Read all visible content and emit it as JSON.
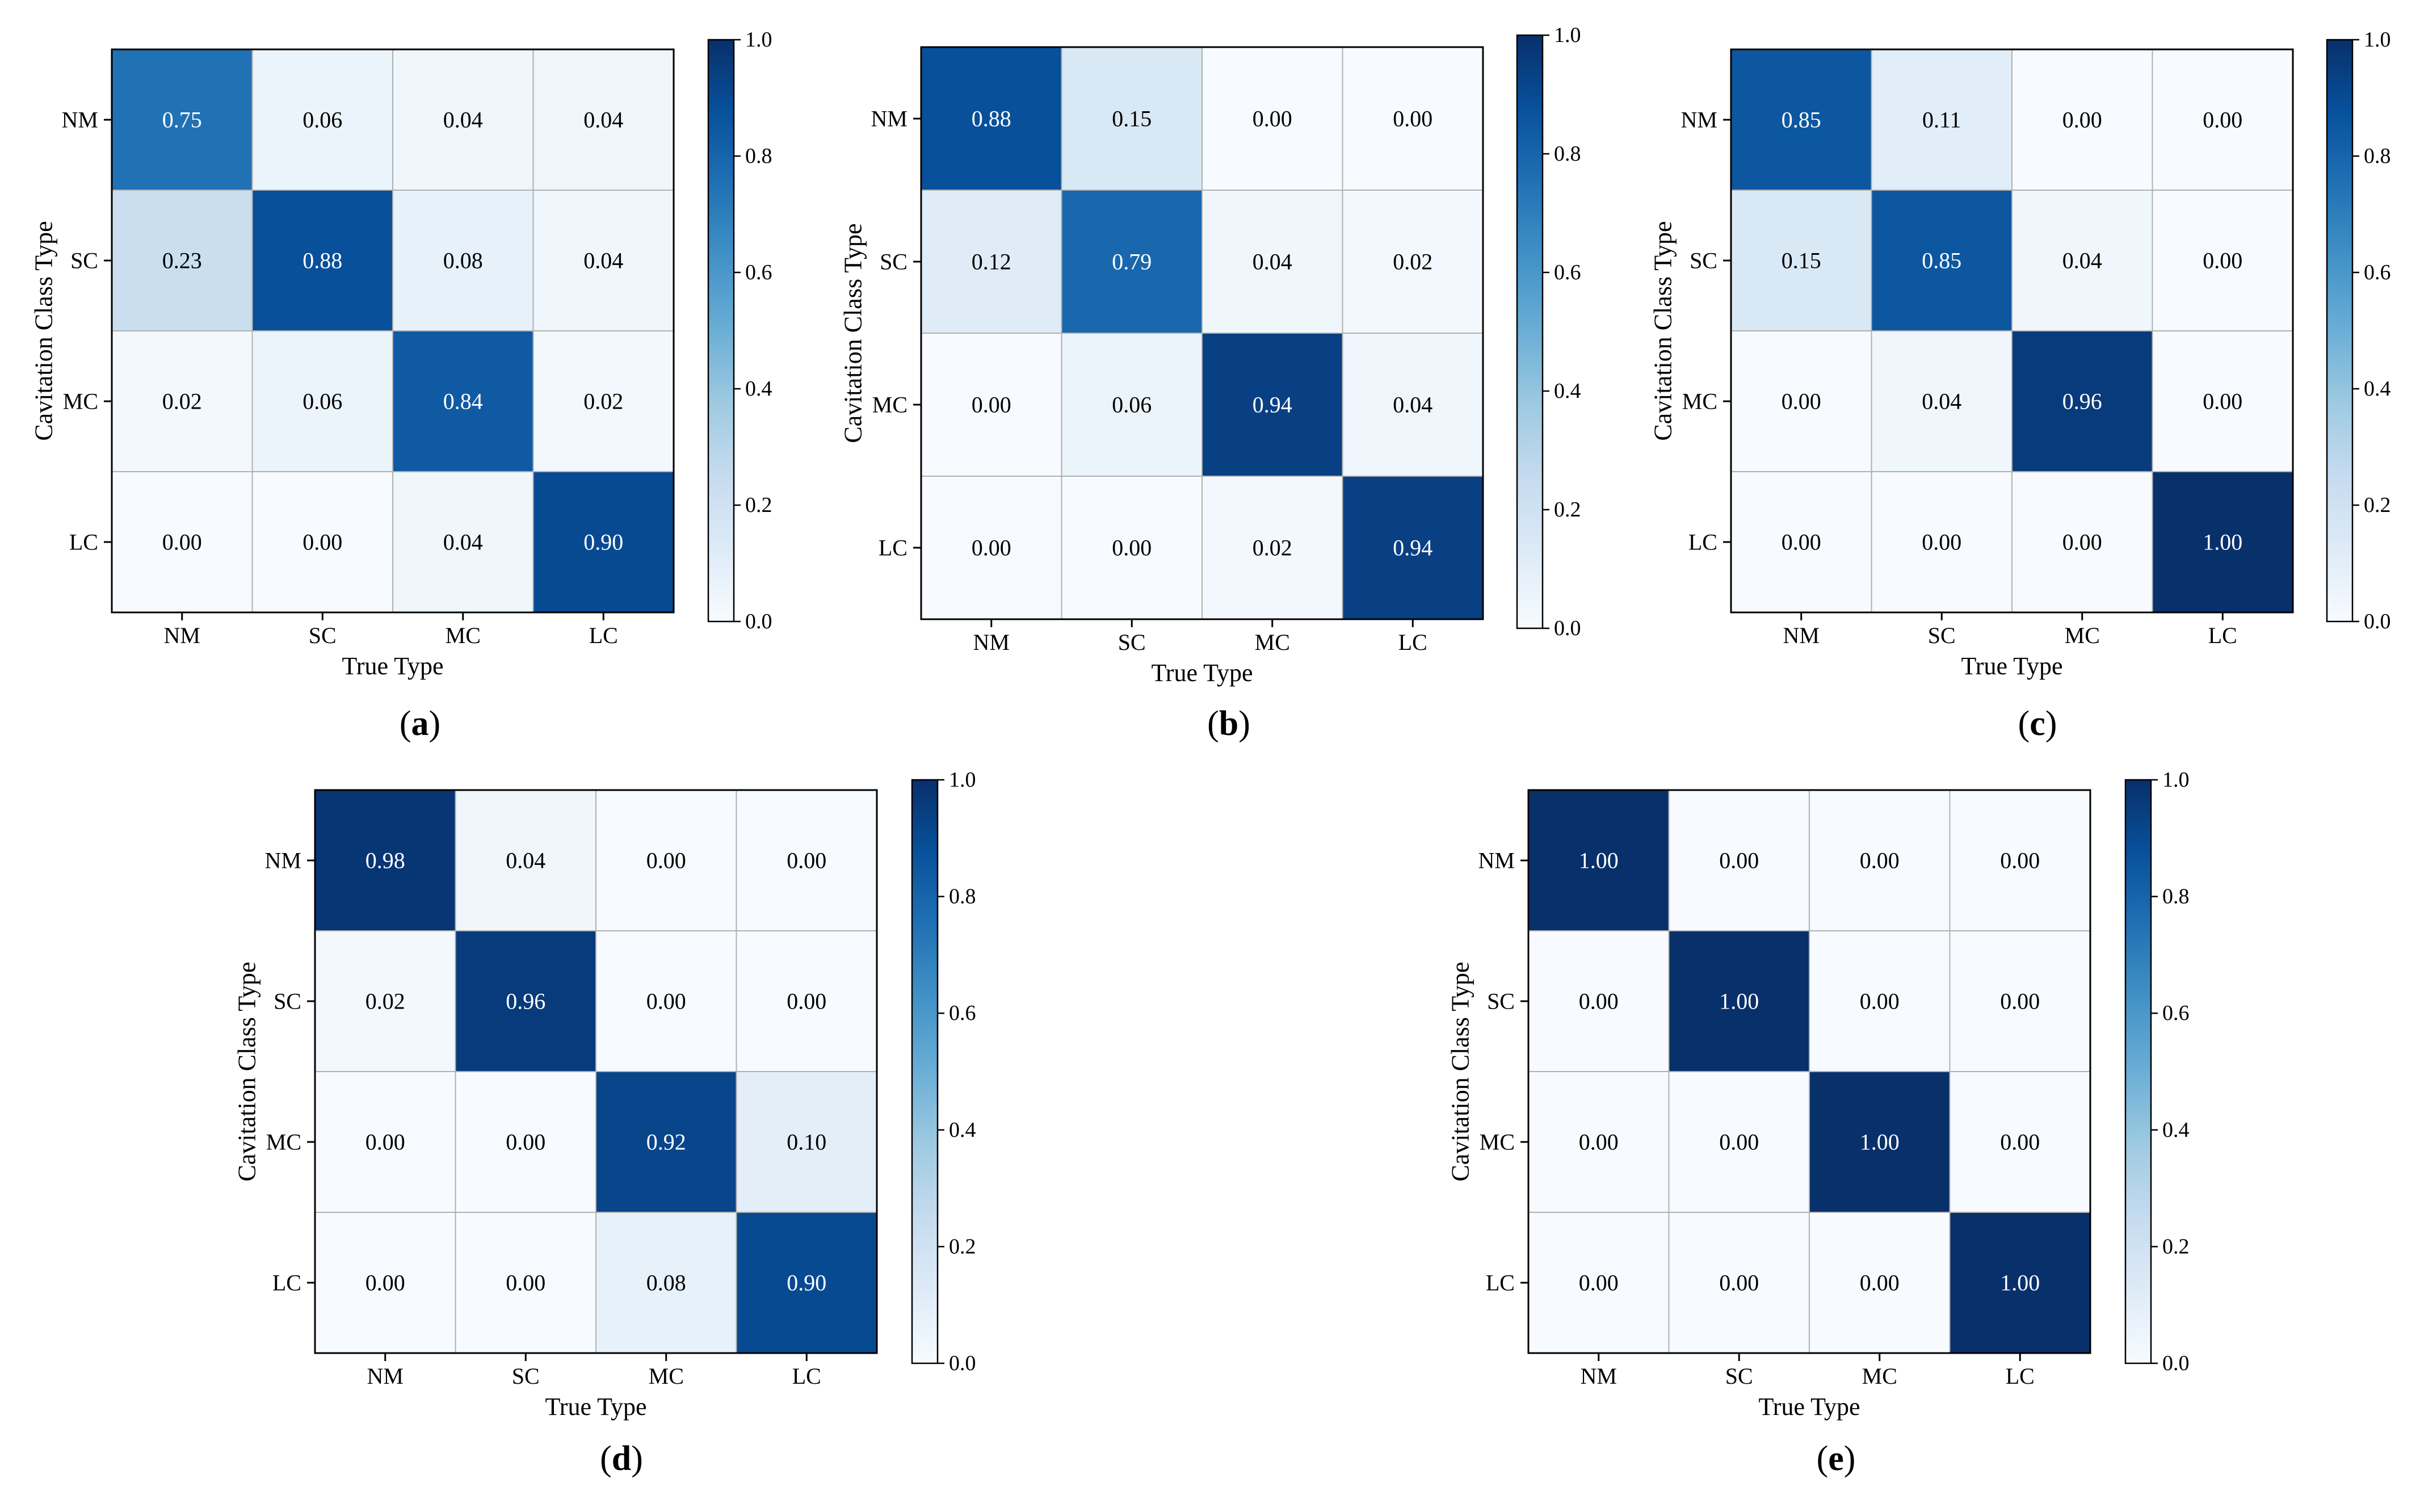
{
  "figure": {
    "panels": [
      "(a)",
      "(b)",
      "(c)",
      "(d)",
      "(e)"
    ]
  },
  "colormap": {
    "name": "Blues",
    "stops": [
      "#f7fbff",
      "#deebf7",
      "#c6dbef",
      "#9ecae1",
      "#6baed6",
      "#4292c6",
      "#2171b5",
      "#08519c",
      "#08306b"
    ],
    "grid_color": "#b0b0b0",
    "text_dark": "#000000",
    "text_light": "#ffffff"
  },
  "chart_data": [
    {
      "type": "heatmap",
      "panel_label": "(a)",
      "row_labels": [
        "NM",
        "SC",
        "MC",
        "LC"
      ],
      "col_labels": [
        "NM",
        "SC",
        "MC",
        "LC"
      ],
      "xlabel": "True Type",
      "ylabel": "Cavitation Class Type",
      "values": [
        [
          0.75,
          0.06,
          0.04,
          0.04
        ],
        [
          0.23,
          0.88,
          0.08,
          0.04
        ],
        [
          0.02,
          0.06,
          0.84,
          0.02
        ],
        [
          0.0,
          0.0,
          0.04,
          0.9
        ]
      ],
      "value_labels": [
        [
          "0.75",
          "0.06",
          "0.04",
          "0.04"
        ],
        [
          "0.23",
          "0.88",
          "0.08",
          "0.04"
        ],
        [
          "0.02",
          "0.06",
          "0.84",
          "0.02"
        ],
        [
          "0.00",
          "0.00",
          "0.04",
          "0.90"
        ]
      ],
      "colorbar": {
        "min": 0,
        "max": 1,
        "tick_values": [
          0,
          0.2,
          0.4,
          0.6,
          0.8,
          1.0
        ],
        "tick_labels": [
          "0.0",
          "0.2",
          "0.4",
          "0.6",
          "0.8",
          "1.0"
        ]
      }
    },
    {
      "type": "heatmap",
      "panel_label": "(b)",
      "row_labels": [
        "NM",
        "SC",
        "MC",
        "LC"
      ],
      "col_labels": [
        "NM",
        "SC",
        "MC",
        "LC"
      ],
      "xlabel": "True Type",
      "ylabel": "Cavitation Class Type",
      "values": [
        [
          0.88,
          0.15,
          0.0,
          0.0
        ],
        [
          0.12,
          0.79,
          0.04,
          0.02
        ],
        [
          0.0,
          0.06,
          0.94,
          0.04
        ],
        [
          0.0,
          0.0,
          0.02,
          0.94
        ]
      ],
      "value_labels": [
        [
          "0.88",
          "0.15",
          "0.00",
          "0.00"
        ],
        [
          "0.12",
          "0.79",
          "0.04",
          "0.02"
        ],
        [
          "0.00",
          "0.06",
          "0.94",
          "0.04"
        ],
        [
          "0.00",
          "0.00",
          "0.02",
          "0.94"
        ]
      ],
      "colorbar": {
        "min": 0,
        "max": 1,
        "tick_values": [
          0,
          0.2,
          0.4,
          0.6,
          0.8,
          1.0
        ],
        "tick_labels": [
          "0.0",
          "0.2",
          "0.4",
          "0.6",
          "0.8",
          "1.0"
        ]
      }
    },
    {
      "type": "heatmap",
      "panel_label": "(c)",
      "row_labels": [
        "NM",
        "SC",
        "MC",
        "LC"
      ],
      "col_labels": [
        "NM",
        "SC",
        "MC",
        "LC"
      ],
      "xlabel": "True Type",
      "ylabel": "Cavitation Class Type",
      "values": [
        [
          0.85,
          0.11,
          0.0,
          0.0
        ],
        [
          0.15,
          0.85,
          0.04,
          0.0
        ],
        [
          0.0,
          0.04,
          0.96,
          0.0
        ],
        [
          0.0,
          0.0,
          0.0,
          1.0
        ]
      ],
      "value_labels": [
        [
          "0.85",
          "0.11",
          "0.00",
          "0.00"
        ],
        [
          "0.15",
          "0.85",
          "0.04",
          "0.00"
        ],
        [
          "0.00",
          "0.04",
          "0.96",
          "0.00"
        ],
        [
          "0.00",
          "0.00",
          "0.00",
          "1.00"
        ]
      ],
      "colorbar": {
        "min": 0,
        "max": 1,
        "tick_values": [
          0,
          0.2,
          0.4,
          0.6,
          0.8,
          1.0
        ],
        "tick_labels": [
          "0.0",
          "0.2",
          "0.4",
          "0.6",
          "0.8",
          "1.0"
        ]
      }
    },
    {
      "type": "heatmap",
      "panel_label": "(d)",
      "row_labels": [
        "NM",
        "SC",
        "MC",
        "LC"
      ],
      "col_labels": [
        "NM",
        "SC",
        "MC",
        "LC"
      ],
      "xlabel": "True Type",
      "ylabel": "Cavitation Class Type",
      "values": [
        [
          0.98,
          0.04,
          0.0,
          0.0
        ],
        [
          0.02,
          0.96,
          0.0,
          0.0
        ],
        [
          0.0,
          0.0,
          0.92,
          0.1
        ],
        [
          0.0,
          0.0,
          0.08,
          0.9
        ]
      ],
      "value_labels": [
        [
          "0.98",
          "0.04",
          "0.00",
          "0.00"
        ],
        [
          "0.02",
          "0.96",
          "0.00",
          "0.00"
        ],
        [
          "0.00",
          "0.00",
          "0.92",
          "0.10"
        ],
        [
          "0.00",
          "0.00",
          "0.08",
          "0.90"
        ]
      ],
      "colorbar": {
        "min": 0,
        "max": 1,
        "tick_values": [
          0,
          0.2,
          0.4,
          0.6,
          0.8,
          1.0
        ],
        "tick_labels": [
          "0.0",
          "0.2",
          "0.4",
          "0.6",
          "0.8",
          "1.0"
        ]
      }
    },
    {
      "type": "heatmap",
      "panel_label": "(e)",
      "row_labels": [
        "NM",
        "SC",
        "MC",
        "LC"
      ],
      "col_labels": [
        "NM",
        "SC",
        "MC",
        "LC"
      ],
      "xlabel": "True Type",
      "ylabel": "Cavitation Class Type",
      "values": [
        [
          1.0,
          0.0,
          0.0,
          0.0
        ],
        [
          0.0,
          1.0,
          0.0,
          0.0
        ],
        [
          0.0,
          0.0,
          1.0,
          0.0
        ],
        [
          0.0,
          0.0,
          0.0,
          1.0
        ]
      ],
      "value_labels": [
        [
          "1.00",
          "0.00",
          "0.00",
          "0.00"
        ],
        [
          "0.00",
          "1.00",
          "0.00",
          "0.00"
        ],
        [
          "0.00",
          "0.00",
          "1.00",
          "0.00"
        ],
        [
          "0.00",
          "0.00",
          "0.00",
          "1.00"
        ]
      ],
      "colorbar": {
        "min": 0,
        "max": 1,
        "tick_values": [
          0,
          0.2,
          0.4,
          0.6,
          0.8,
          1.0
        ],
        "tick_labels": [
          "0.0",
          "0.2",
          "0.4",
          "0.6",
          "0.8",
          "1.0"
        ]
      }
    }
  ]
}
